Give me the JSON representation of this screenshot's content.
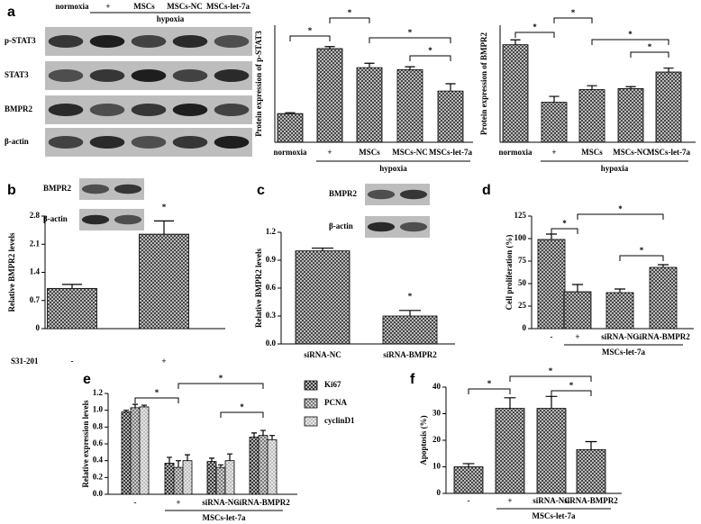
{
  "chart_data": [
    {
      "type": "blot",
      "panel_label": "a",
      "lanes": [
        "normoxia",
        "+",
        "MSCs",
        "MSCs-NC",
        "MSCs-let-7a"
      ],
      "group_label": "hypoxia",
      "rows": [
        "p-STAT3",
        "STAT3",
        "BMPR2",
        "β-actin"
      ]
    },
    {
      "type": "bar",
      "ylabel": "Protein expression of p-STAT3",
      "categories": [
        "normoxia",
        "+",
        "MSCs",
        "MSCs-NC",
        "MSCs-let-7a"
      ],
      "group_label": "hypoxia",
      "values": [
        0.98,
        3.2,
        2.55,
        2.48,
        1.75
      ],
      "errors": [
        0.03,
        0.07,
        0.15,
        0.1,
        0.25
      ],
      "color": "#444444",
      "ylim": [
        0,
        4
      ],
      "annotations": [
        "*",
        "*",
        "*",
        "*"
      ]
    },
    {
      "type": "bar",
      "ylabel": "Protein expression of BMPR2",
      "categories": [
        "normoxia",
        "+",
        "MSCs",
        "MSCs-NC",
        "MSCs-let-7a"
      ],
      "group_label": "hypoxia",
      "values": [
        1.0,
        0.41,
        0.54,
        0.55,
        0.72
      ],
      "errors": [
        0.05,
        0.06,
        0.04,
        0.02,
        0.04
      ],
      "color": "#444444",
      "ylim": [
        0,
        1.2
      ],
      "annotations": [
        "*",
        "*",
        "*",
        "*"
      ]
    },
    {
      "type": "bar",
      "panel_label": "b",
      "blot_rows": [
        "BMPR2",
        "β-actin"
      ],
      "ylabel": "Relative BMPR2 levels",
      "xlabel": "S31-201",
      "categories": [
        "-",
        "+"
      ],
      "values": [
        1.0,
        2.35
      ],
      "errors": [
        0.1,
        0.33
      ],
      "color": "#444444",
      "ylim": [
        0,
        2.8
      ],
      "yticks": [
        0,
        0.7,
        1.4,
        2.1,
        2.8
      ],
      "annotations": [
        "*"
      ]
    },
    {
      "type": "bar",
      "panel_label": "c",
      "blot_rows": [
        "BMPR2",
        "β-actin"
      ],
      "ylabel": "Relative BMPR2 levels",
      "categories": [
        "siRNA-NC",
        "siRNA-BMPR2"
      ],
      "values": [
        1.0,
        0.3
      ],
      "errors": [
        0.03,
        0.06
      ],
      "color": "#444444",
      "ylim": [
        0,
        1.2
      ],
      "yticks": [
        {
          "value": 0,
          "label": "0.0"
        },
        0.3,
        0.6,
        0.9,
        1.2
      ],
      "annotations": [
        "*"
      ]
    },
    {
      "type": "bar",
      "panel_label": "d",
      "ylabel": "Cell proliferation (%)",
      "categories": [
        "-",
        "+",
        "siRNA-NC",
        "siRNA-BMPR2"
      ],
      "group_label": "MSCs-let-7a",
      "values": [
        99,
        41,
        40,
        68
      ],
      "errors": [
        6,
        8,
        4,
        3
      ],
      "color": "#444444",
      "ylim": [
        0,
        125
      ],
      "yticks": [
        0,
        25,
        50,
        75,
        100,
        125
      ],
      "annotations": [
        "*",
        "*",
        "*"
      ]
    },
    {
      "type": "bar",
      "panel_label": "e",
      "ylabel": "Relative expression levels",
      "categories": [
        "-",
        "+",
        "siRNA-NC",
        "siRNA-BMPR2"
      ],
      "group_label": "MSCs-let-7a",
      "series": [
        {
          "name": "Ki67",
          "color": "#333333",
          "values": [
            0.98,
            0.37,
            0.39,
            0.68
          ],
          "errors": [
            0.02,
            0.07,
            0.04,
            0.05
          ]
        },
        {
          "name": "PCNA",
          "color": "#777777",
          "values": [
            1.03,
            0.32,
            0.32,
            0.7
          ],
          "errors": [
            0.04,
            0.08,
            0.03,
            0.06
          ]
        },
        {
          "name": "cyclinD1",
          "color": "#bbbbbb",
          "values": [
            1.04,
            0.4,
            0.4,
            0.65
          ],
          "errors": [
            0.02,
            0.07,
            0.08,
            0.05
          ]
        }
      ],
      "ylim": [
        0,
        1.2
      ],
      "yticks": [
        {
          "value": 0,
          "label": "0.0"
        },
        0.2,
        0.4,
        0.6,
        0.8,
        {
          "value": 1,
          "label": "1.0"
        },
        1.2
      ],
      "annotations": [
        "*",
        "*",
        "*"
      ]
    },
    {
      "type": "bar",
      "panel_label": "f",
      "ylabel": "Apoptosis (%)",
      "categories": [
        "-",
        "+",
        "siRNA-NC",
        "siRNA-BMPR2"
      ],
      "group_label": "MSCs-let-7a",
      "values": [
        10,
        32,
        32,
        16.5
      ],
      "errors": [
        1.2,
        4,
        4.5,
        3
      ],
      "color": "#444444",
      "ylim": [
        0,
        40
      ],
      "yticks": [
        0,
        10,
        20,
        30,
        40
      ],
      "annotations": [
        "*",
        "*",
        "*"
      ]
    }
  ]
}
